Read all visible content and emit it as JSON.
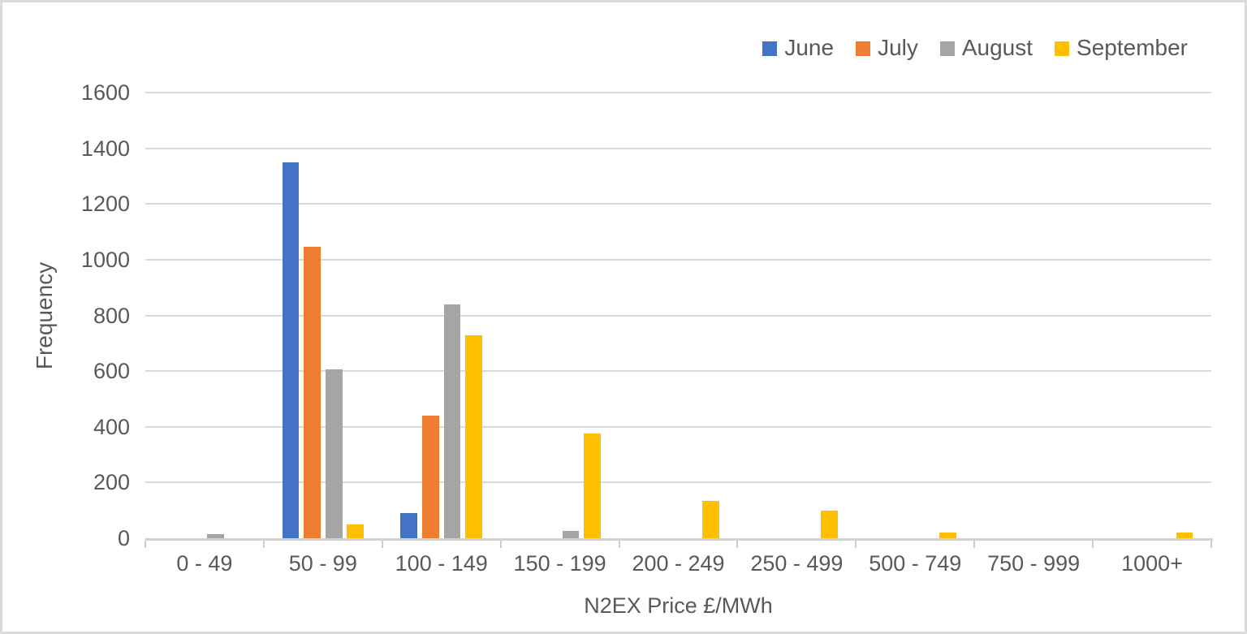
{
  "chart_data": {
    "type": "bar",
    "title": "",
    "xlabel": "N2EX Price £/MWh",
    "ylabel": "Frequency",
    "categories": [
      "0 - 49",
      "50 - 99",
      "100 - 149",
      "150 - 199",
      "200 - 249",
      "250 - 499",
      "500 - 749",
      "750 - 999",
      "1000+"
    ],
    "series": [
      {
        "name": "June",
        "color": "#4472C4",
        "values": [
          0,
          1350,
          90,
          0,
          0,
          0,
          0,
          0,
          0
        ]
      },
      {
        "name": "July",
        "color": "#ED7D31",
        "values": [
          0,
          1045,
          440,
          0,
          0,
          0,
          0,
          0,
          0
        ]
      },
      {
        "name": "August",
        "color": "#A5A5A5",
        "values": [
          15,
          605,
          840,
          25,
          0,
          0,
          0,
          0,
          0
        ]
      },
      {
        "name": "September",
        "color": "#FFC000",
        "values": [
          0,
          50,
          730,
          375,
          135,
          100,
          20,
          0,
          20
        ]
      }
    ],
    "ylim": [
      0,
      1600
    ],
    "ytick_step": 200,
    "ytick_labels": [
      "0",
      "200",
      "400",
      "600",
      "800",
      "1000",
      "1200",
      "1400",
      "1600"
    ],
    "grid": true,
    "legend_position": "top-right"
  },
  "colors": {
    "text": "#595959",
    "gridline": "#D9D9D9",
    "axis_line": "#D2D2D2",
    "background": "#FFFFFF",
    "frame_border": "#DBDBDB"
  }
}
